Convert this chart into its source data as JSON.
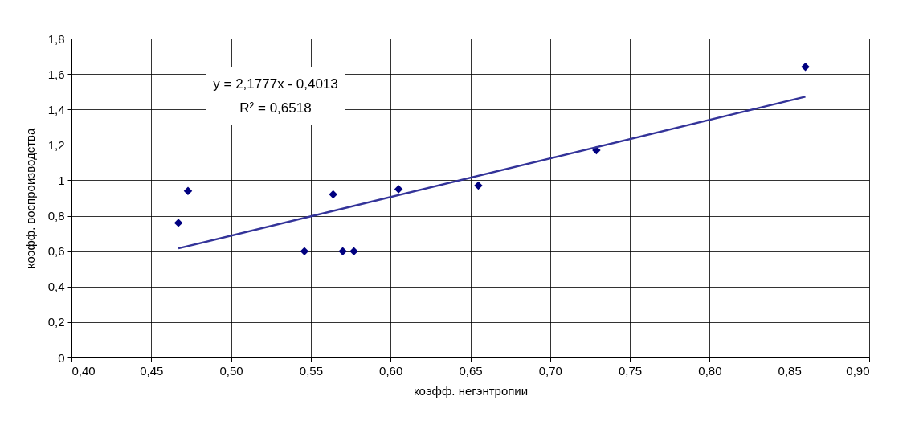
{
  "chart_data": {
    "type": "scatter",
    "xlabel": "коэфф. негэнтропии",
    "ylabel": "коэфф. воспроизводства",
    "x": [
      0.467,
      0.473,
      0.546,
      0.564,
      0.57,
      0.577,
      0.605,
      0.655,
      0.729,
      0.86
    ],
    "series": [
      {
        "color": "#000080",
        "values": [
          0.76,
          0.94,
          0.6,
          0.92,
          0.6,
          0.6,
          0.95,
          0.97,
          1.17,
          1.64
        ]
      },
      {
        "type": "line",
        "marker": "none",
        "color": "#333399",
        "x": [
          0.467,
          0.86
        ],
        "values": [
          0.616,
          1.472
        ]
      }
    ],
    "annotations": [
      "y = 2,1777x - 0,4013",
      "R² = 0,6518"
    ],
    "xlim": [
      0.4,
      0.9
    ],
    "xticks": [
      {
        "value": 0.4,
        "label": "0,40"
      },
      {
        "value": 0.45,
        "label": "0,45"
      },
      {
        "value": 0.5,
        "label": "0,50"
      },
      {
        "value": 0.55,
        "label": "0,55"
      },
      {
        "value": 0.6,
        "label": "0,60"
      },
      {
        "value": 0.65,
        "label": "0,65"
      },
      {
        "value": 0.7,
        "label": "0,70"
      },
      {
        "value": 0.75,
        "label": "0,75"
      },
      {
        "value": 0.8,
        "label": "0,80"
      },
      {
        "value": 0.85,
        "label": "0,85"
      },
      {
        "value": 0.9,
        "label": "0,90"
      }
    ],
    "ylim": [
      0,
      1.8
    ],
    "yticks": [
      0,
      {
        "value": 0.2,
        "label": "0,2"
      },
      {
        "value": 0.4,
        "label": "0,4"
      },
      {
        "value": 0.6,
        "label": "0,6"
      },
      {
        "value": 0.8,
        "label": "0,8"
      },
      1,
      {
        "value": 1.2,
        "label": "1,2"
      },
      {
        "value": 1.4,
        "label": "1,4"
      },
      {
        "value": 1.6,
        "label": "1,6"
      },
      {
        "value": 1.8,
        "label": "1,8"
      }
    ],
    "grid": true,
    "marker": "diamond",
    "line_style": "solid"
  }
}
